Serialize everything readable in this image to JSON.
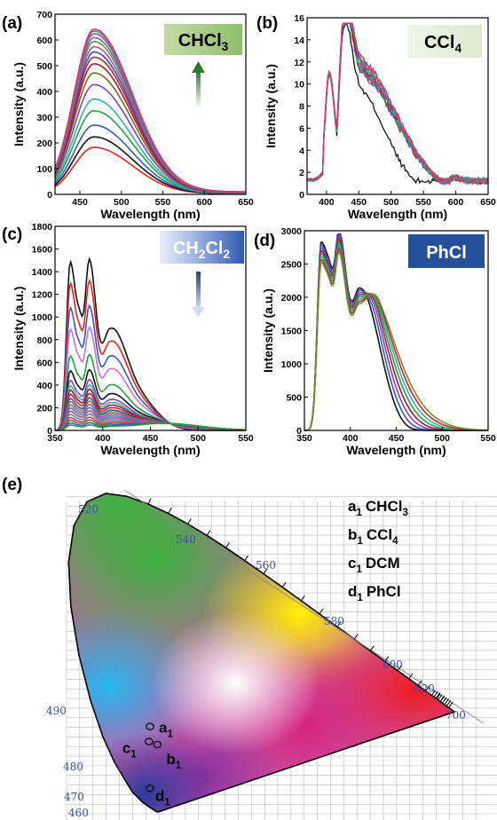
{
  "chart_data": [
    {
      "id": "a",
      "type": "line",
      "panel_label": "(a)",
      "solvent": {
        "base": "CHCl",
        "sub": "3"
      },
      "xlabel": "Wavelength (nm)",
      "ylabel": "Intensity (a.u.)",
      "xlim": [
        420,
        650
      ],
      "ylim": [
        0,
        700
      ],
      "xticks": [
        450,
        500,
        550,
        600,
        650
      ],
      "yticks": [
        0,
        100,
        200,
        300,
        400,
        500,
        600,
        700
      ],
      "arrow": "up",
      "peak_x": 467,
      "series_peaks": [
        180,
        220,
        265,
        320,
        365,
        420,
        465,
        500,
        525,
        545,
        565,
        585,
        600,
        615,
        625,
        632
      ],
      "series_colors": [
        "#e8221c",
        "#111111",
        "#2f59c4",
        "#21a33a",
        "#2db2b0",
        "#8a3fb4",
        "#6f6f1f",
        "#9a1b3a",
        "#cc2020",
        "#2b4fc0",
        "#b04ab6",
        "#7a8d2a",
        "#3b7ec9",
        "#c43f7c",
        "#3d9a8f",
        "#e0306a"
      ]
    },
    {
      "id": "b",
      "type": "line",
      "panel_label": "(b)",
      "solvent": {
        "base": "CCl",
        "sub": "4"
      },
      "xlabel": "Wavelength (nm)",
      "ylabel": "Intensity (a.u.)",
      "xlim": [
        370,
        650
      ],
      "ylim": [
        0,
        16
      ],
      "xticks": [
        400,
        450,
        500,
        550,
        600,
        650
      ],
      "yticks": [
        0,
        2,
        4,
        6,
        8,
        10,
        12,
        14,
        16
      ],
      "series_colors": [
        "#111111",
        "#e8221c",
        "#2f59c4",
        "#21a33a",
        "#8a3fb4",
        "#2db2b0",
        "#9a1b3a",
        "#7a8d2a",
        "#3b7ec9",
        "#c43f7c",
        "#3d9a8f",
        "#e0306a"
      ]
    },
    {
      "id": "c",
      "type": "line",
      "panel_label": "(c)",
      "solvent": {
        "base": "CH",
        "sub": "2",
        "mid": "Cl",
        "sub2": "2"
      },
      "xlabel": "Wavelength (nm)",
      "ylabel": "Intensity (a.u.)",
      "xlim": [
        350,
        550
      ],
      "ylim": [
        0,
        1800
      ],
      "xticks": [
        350,
        400,
        450,
        500,
        550
      ],
      "yticks": [
        0,
        200,
        400,
        600,
        800,
        1000,
        1200,
        1400,
        1600,
        1800
      ],
      "arrow": "down",
      "series_peaks": [
        1580,
        1380,
        1150,
        950,
        700,
        560,
        470,
        420,
        380,
        340,
        300,
        270,
        240,
        210,
        180,
        150,
        120,
        95,
        70,
        50
      ],
      "series_colors": [
        "#111111",
        "#e8221c",
        "#2f59c4",
        "#d070c8",
        "#21a33a",
        "#111111",
        "#8a3fb4",
        "#2db2b0",
        "#9a1b3a",
        "#cc2020",
        "#2b4fc0",
        "#7a8d2a",
        "#b04ab6",
        "#3b7ec9",
        "#c43f7c",
        "#3d9a8f",
        "#e0306a",
        "#6f6f1f",
        "#2f59c4",
        "#21a33a"
      ]
    },
    {
      "id": "d",
      "type": "line",
      "panel_label": "(d)",
      "solvent": {
        "base": "PhCl",
        "sub": ""
      },
      "xlabel": "Wavelength (nm)",
      "ylabel": "Intensity (a.u.)",
      "xlim": [
        350,
        550
      ],
      "ylim": [
        0,
        3000
      ],
      "xticks": [
        350,
        400,
        450,
        500,
        550
      ],
      "yticks": [
        0,
        500,
        1000,
        1500,
        2000,
        2500,
        3000
      ],
      "series_colors": [
        "#111111",
        "#2f59c4",
        "#8a3fb4",
        "#9a1b3a",
        "#21a33a",
        "#2db2b0",
        "#cc2020",
        "#7a8d2a"
      ]
    },
    {
      "id": "e",
      "type": "scatter",
      "panel_label": "(e)",
      "wavelength_ticks": [
        "460",
        "470",
        "480",
        "490",
        "520",
        "540",
        "560",
        "580",
        "600",
        "620",
        "700"
      ],
      "points": [
        {
          "base": "a",
          "sub": "1",
          "x": 0.158,
          "y": 0.227
        },
        {
          "base": "b",
          "sub": "1",
          "x": 0.172,
          "y": 0.18
        },
        {
          "base": "c",
          "sub": "1",
          "x": 0.156,
          "y": 0.188
        },
        {
          "base": "d",
          "sub": "1",
          "x": 0.158,
          "y": 0.066
        }
      ],
      "legend": [
        {
          "base": "a",
          "sub": "1",
          "name": "CHCl",
          "nsub": "3"
        },
        {
          "base": "b",
          "sub": "1",
          "name": "CCl",
          "nsub": "4"
        },
        {
          "base": "c",
          "sub": "1",
          "name": "DCM",
          "nsub": ""
        },
        {
          "base": "d",
          "sub": "1",
          "name": "PhCl",
          "nsub": ""
        }
      ]
    }
  ]
}
